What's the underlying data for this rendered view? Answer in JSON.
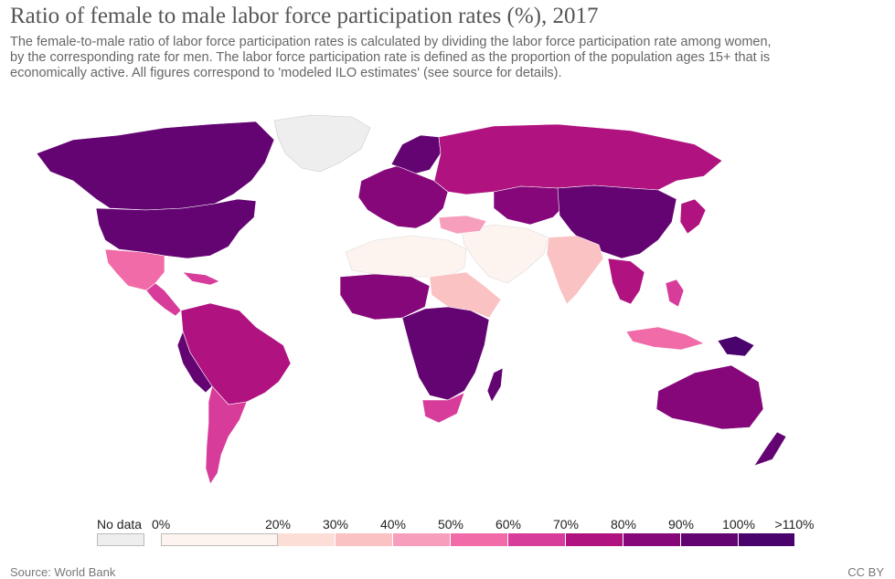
{
  "title": "Ratio of female to male labor force participation rates (%), 2017",
  "subtitle": "The female-to-male ratio of labor force participation rates is calculated by dividing the labor force participation rate among women, by the corresponding rate for men. The labor force participation rate is defined as the proportion of the population ages 15+ that is economically active. All figures correspond to 'modeled ILO estimates' (see source for details).",
  "legend": {
    "no_data_label": "No data",
    "no_data_color": "#eeeeee",
    "bins": [
      {
        "from": "0%",
        "to": "20%",
        "color": "#fdf3ef"
      },
      {
        "from": "20%",
        "to": "30%",
        "color": "#fcded6"
      },
      {
        "from": "30%",
        "to": "40%",
        "color": "#fac2c3"
      },
      {
        "from": "40%",
        "to": "50%",
        "color": "#f79ebd"
      },
      {
        "from": "50%",
        "to": "60%",
        "color": "#f06ba7"
      },
      {
        "from": "60%",
        "to": "70%",
        "color": "#d73c9a"
      },
      {
        "from": "70%",
        "to": "80%",
        "color": "#b0127f"
      },
      {
        "from": "80%",
        "to": "90%",
        "color": "#85077a"
      },
      {
        "from": "90%",
        "to": "100%",
        "color": "#630472"
      },
      {
        "from": "100%",
        "to": ">110%",
        "color": "#4a026d"
      }
    ],
    "ticks": [
      "0%",
      "20%",
      "30%",
      "40%",
      "50%",
      "60%",
      "70%",
      "80%",
      "90%",
      "100%",
      ">110%"
    ]
  },
  "source": "Source: World Bank",
  "license": "CC BY"
}
